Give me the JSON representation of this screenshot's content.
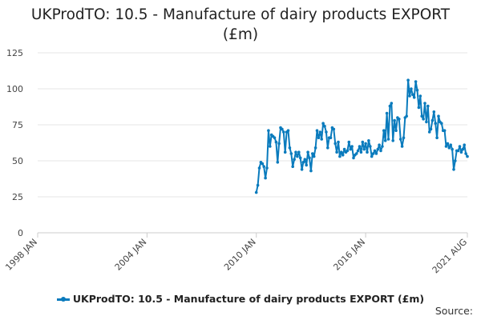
{
  "title_line1": "UKProdTO: 10.5 - Manufacture of dairy products EXPORT",
  "title_line2": "(£m)",
  "legend_label": "UKProdTO: 10.5 - Manufacture of dairy products EXPORT (£m)",
  "source_label": "Source:",
  "colors": {
    "series": "#0a7bbd",
    "grid": "#e6e6e6",
    "axis": "#cccccc"
  },
  "chart_data": {
    "type": "line",
    "title": "UKProdTO: 10.5 - Manufacture of dairy products EXPORT (£m)",
    "xlabel": "",
    "ylabel": "",
    "xlim": [
      "1998-01",
      "2021-08"
    ],
    "ylim": [
      0,
      125
    ],
    "y_ticks": [
      0,
      25,
      50,
      75,
      100,
      125
    ],
    "x_tick_labels": [
      "1998 JAN",
      "2004 JAN",
      "2010 JAN",
      "2016 JAN",
      "2021 AUG"
    ],
    "x_tick_dates": [
      "1998-01",
      "2004-01",
      "2010-01",
      "2016-01",
      "2021-08"
    ],
    "grid": true,
    "legend": "bottom",
    "series": [
      {
        "name": "UKProdTO: 10.5 - Manufacture of dairy products EXPORT (£m)",
        "points": [
          [
            "2010-01",
            28
          ],
          [
            "2010-02",
            33
          ],
          [
            "2010-03",
            45
          ],
          [
            "2010-04",
            49
          ],
          [
            "2010-05",
            48
          ],
          [
            "2010-06",
            46
          ],
          [
            "2010-07",
            38
          ],
          [
            "2010-08",
            45
          ],
          [
            "2010-09",
            71
          ],
          [
            "2010-10",
            60
          ],
          [
            "2010-11",
            68
          ],
          [
            "2010-12",
            67
          ],
          [
            "2011-01",
            66
          ],
          [
            "2011-02",
            63
          ],
          [
            "2011-03",
            49
          ],
          [
            "2011-04",
            62
          ],
          [
            "2011-05",
            73
          ],
          [
            "2011-06",
            72
          ],
          [
            "2011-07",
            70
          ],
          [
            "2011-08",
            56
          ],
          [
            "2011-09",
            70
          ],
          [
            "2011-10",
            71
          ],
          [
            "2011-11",
            59
          ],
          [
            "2011-12",
            55
          ],
          [
            "2012-01",
            46
          ],
          [
            "2012-02",
            51
          ],
          [
            "2012-03",
            56
          ],
          [
            "2012-04",
            53
          ],
          [
            "2012-05",
            56
          ],
          [
            "2012-06",
            52
          ],
          [
            "2012-07",
            44
          ],
          [
            "2012-08",
            49
          ],
          [
            "2012-09",
            51
          ],
          [
            "2012-10",
            47
          ],
          [
            "2012-11",
            56
          ],
          [
            "2012-12",
            52
          ],
          [
            "2013-01",
            43
          ],
          [
            "2013-02",
            55
          ],
          [
            "2013-03",
            53
          ],
          [
            "2013-04",
            59
          ],
          [
            "2013-05",
            71
          ],
          [
            "2013-06",
            66
          ],
          [
            "2013-07",
            70
          ],
          [
            "2013-08",
            65
          ],
          [
            "2013-09",
            76
          ],
          [
            "2013-10",
            74
          ],
          [
            "2013-11",
            70
          ],
          [
            "2013-12",
            59
          ],
          [
            "2014-01",
            66
          ],
          [
            "2014-02",
            66
          ],
          [
            "2014-03",
            73
          ],
          [
            "2014-04",
            72
          ],
          [
            "2014-05",
            62
          ],
          [
            "2014-06",
            56
          ],
          [
            "2014-07",
            63
          ],
          [
            "2014-08",
            53
          ],
          [
            "2014-09",
            56
          ],
          [
            "2014-10",
            54
          ],
          [
            "2014-11",
            58
          ],
          [
            "2014-12",
            56
          ],
          [
            "2015-01",
            57
          ],
          [
            "2015-02",
            63
          ],
          [
            "2015-03",
            58
          ],
          [
            "2015-04",
            60
          ],
          [
            "2015-05",
            52
          ],
          [
            "2015-06",
            54
          ],
          [
            "2015-07",
            55
          ],
          [
            "2015-08",
            57
          ],
          [
            "2015-09",
            60
          ],
          [
            "2015-10",
            56
          ],
          [
            "2015-11",
            63
          ],
          [
            "2015-12",
            58
          ],
          [
            "2016-01",
            62
          ],
          [
            "2016-02",
            56
          ],
          [
            "2016-03",
            64
          ],
          [
            "2016-04",
            60
          ],
          [
            "2016-05",
            53
          ],
          [
            "2016-06",
            55
          ],
          [
            "2016-07",
            57
          ],
          [
            "2016-08",
            55
          ],
          [
            "2016-09",
            58
          ],
          [
            "2016-10",
            61
          ],
          [
            "2016-11",
            57
          ],
          [
            "2016-12",
            60
          ],
          [
            "2017-01",
            71
          ],
          [
            "2017-02",
            64
          ],
          [
            "2017-03",
            83
          ],
          [
            "2017-04",
            65
          ],
          [
            "2017-05",
            88
          ],
          [
            "2017-06",
            90
          ],
          [
            "2017-07",
            64
          ],
          [
            "2017-08",
            78
          ],
          [
            "2017-09",
            71
          ],
          [
            "2017-10",
            80
          ],
          [
            "2017-11",
            79
          ],
          [
            "2017-12",
            65
          ],
          [
            "2018-01",
            60
          ],
          [
            "2018-02",
            66
          ],
          [
            "2018-03",
            80
          ],
          [
            "2018-04",
            81
          ],
          [
            "2018-05",
            106
          ],
          [
            "2018-06",
            95
          ],
          [
            "2018-07",
            100
          ],
          [
            "2018-08",
            96
          ],
          [
            "2018-09",
            94
          ],
          [
            "2018-10",
            105
          ],
          [
            "2018-11",
            99
          ],
          [
            "2018-12",
            87
          ],
          [
            "2019-01",
            95
          ],
          [
            "2019-02",
            81
          ],
          [
            "2019-03",
            79
          ],
          [
            "2019-04",
            90
          ],
          [
            "2019-05",
            77
          ],
          [
            "2019-06",
            88
          ],
          [
            "2019-07",
            70
          ],
          [
            "2019-08",
            72
          ],
          [
            "2019-09",
            78
          ],
          [
            "2019-10",
            84
          ],
          [
            "2019-11",
            76
          ],
          [
            "2019-12",
            66
          ],
          [
            "2020-01",
            81
          ],
          [
            "2020-02",
            77
          ],
          [
            "2020-03",
            76
          ],
          [
            "2020-04",
            71
          ],
          [
            "2020-05",
            71
          ],
          [
            "2020-06",
            60
          ],
          [
            "2020-07",
            62
          ],
          [
            "2020-08",
            59
          ],
          [
            "2020-09",
            61
          ],
          [
            "2020-10",
            58
          ],
          [
            "2020-11",
            44
          ],
          [
            "2020-12",
            50
          ],
          [
            "2021-01",
            57
          ],
          [
            "2021-02",
            57
          ],
          [
            "2021-03",
            60
          ],
          [
            "2021-04",
            56
          ],
          [
            "2021-05",
            58
          ],
          [
            "2021-06",
            61
          ],
          [
            "2021-07",
            55
          ],
          [
            "2021-08",
            53
          ]
        ]
      }
    ]
  }
}
